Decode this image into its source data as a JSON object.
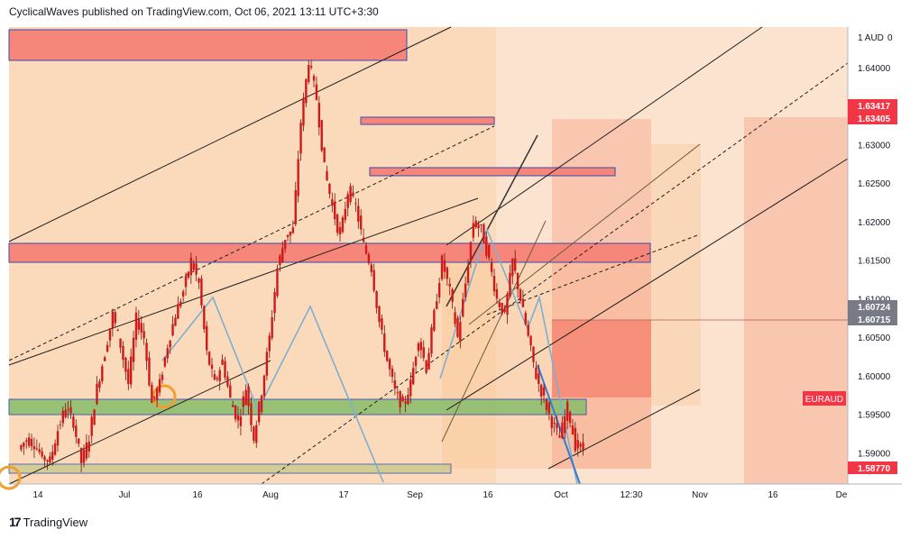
{
  "header": {
    "text": "CyclicalWaves published on TradingView.com, Oct 06, 2021 13:11 UTC+3:30"
  },
  "footer": {
    "logo_glyph": "17",
    "brand": "TradingView"
  },
  "chart_data": {
    "type": "candlestick",
    "symbol_label": "EURAUD",
    "currency_label": "1 AUD",
    "currency_suffix": "0",
    "ylim": [
      1.586,
      1.6453
    ],
    "y_ticks": [
      "1.64000",
      "1.63000",
      "1.62500",
      "1.62000",
      "1.61500",
      "1.61000",
      "1.60500",
      "1.60000",
      "1.59500",
      "1.59000"
    ],
    "x_ticks": [
      "14",
      "Jul",
      "16",
      "Aug",
      "17",
      "Sep",
      "16",
      "Oct",
      "12:30",
      "Nov",
      "16",
      "De"
    ],
    "price_tags": [
      {
        "label": "1.63417",
        "color": "#f23645"
      },
      {
        "label": "1.63405",
        "color": "#f23645"
      },
      {
        "label": "1.60724",
        "color": "#787b86"
      },
      {
        "label": "1.60715",
        "color": "#787b86"
      },
      {
        "label": "1.58770",
        "color": "#f23645"
      }
    ],
    "colors": {
      "background": "#ffffff",
      "plot": "#fbe3cf",
      "up": "#26a69a",
      "down": "#ef5350",
      "candle": "#cf1a1a",
      "supply_zone": "#f7867a",
      "demand_zone": "#8ebf6f",
      "wave": "#7eaed2"
    },
    "price_path": [
      1.5905,
      1.5918,
      1.5912,
      1.5895,
      1.589,
      1.593,
      1.596,
      1.594,
      1.5888,
      1.592,
      1.5985,
      1.603,
      1.608,
      1.604,
      1.599,
      1.6075,
      1.605,
      1.5965,
      1.599,
      1.604,
      1.608,
      1.611,
      1.615,
      1.612,
      1.603,
      1.599,
      1.602,
      1.597,
      1.594,
      1.5985,
      1.592,
      1.598,
      1.605,
      1.614,
      1.618,
      1.619,
      1.633,
      1.641,
      1.636,
      1.627,
      1.622,
      1.618,
      1.624,
      1.622,
      1.617,
      1.614,
      1.607,
      1.602,
      1.598,
      1.596,
      1.599,
      1.605,
      1.601,
      1.608,
      1.615,
      1.611,
      1.605,
      1.612,
      1.62,
      1.619,
      1.615,
      1.61,
      1.608,
      1.615,
      1.61,
      1.605,
      1.6,
      1.597,
      1.594,
      1.592,
      1.596,
      1.591,
      1.5905
    ]
  }
}
